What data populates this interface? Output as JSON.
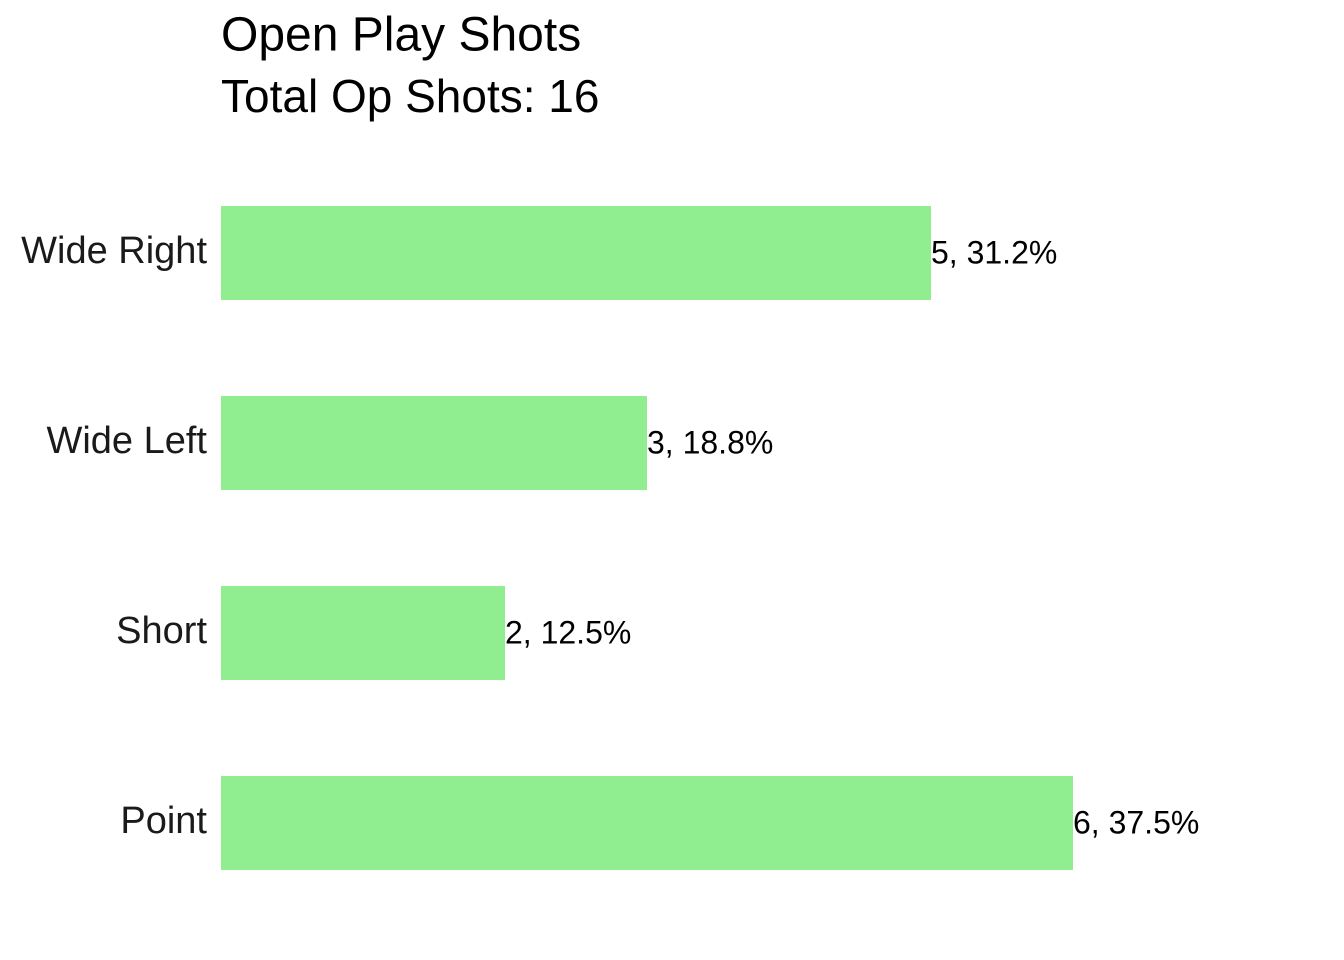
{
  "chart_data": {
    "type": "bar",
    "orientation": "horizontal",
    "title": "Open Play Shots",
    "subtitle": "Total Op Shots: 16",
    "categories": [
      "Wide Right",
      "Wide Left",
      "Short",
      "Point"
    ],
    "values": [
      5,
      3,
      2,
      6
    ],
    "value_labels": [
      "5, 31.2%",
      "3, 18.8%",
      "2, 12.5%",
      "6, 37.5%"
    ],
    "color": "#90ee90",
    "xlim": [
      0,
      7.8
    ]
  }
}
